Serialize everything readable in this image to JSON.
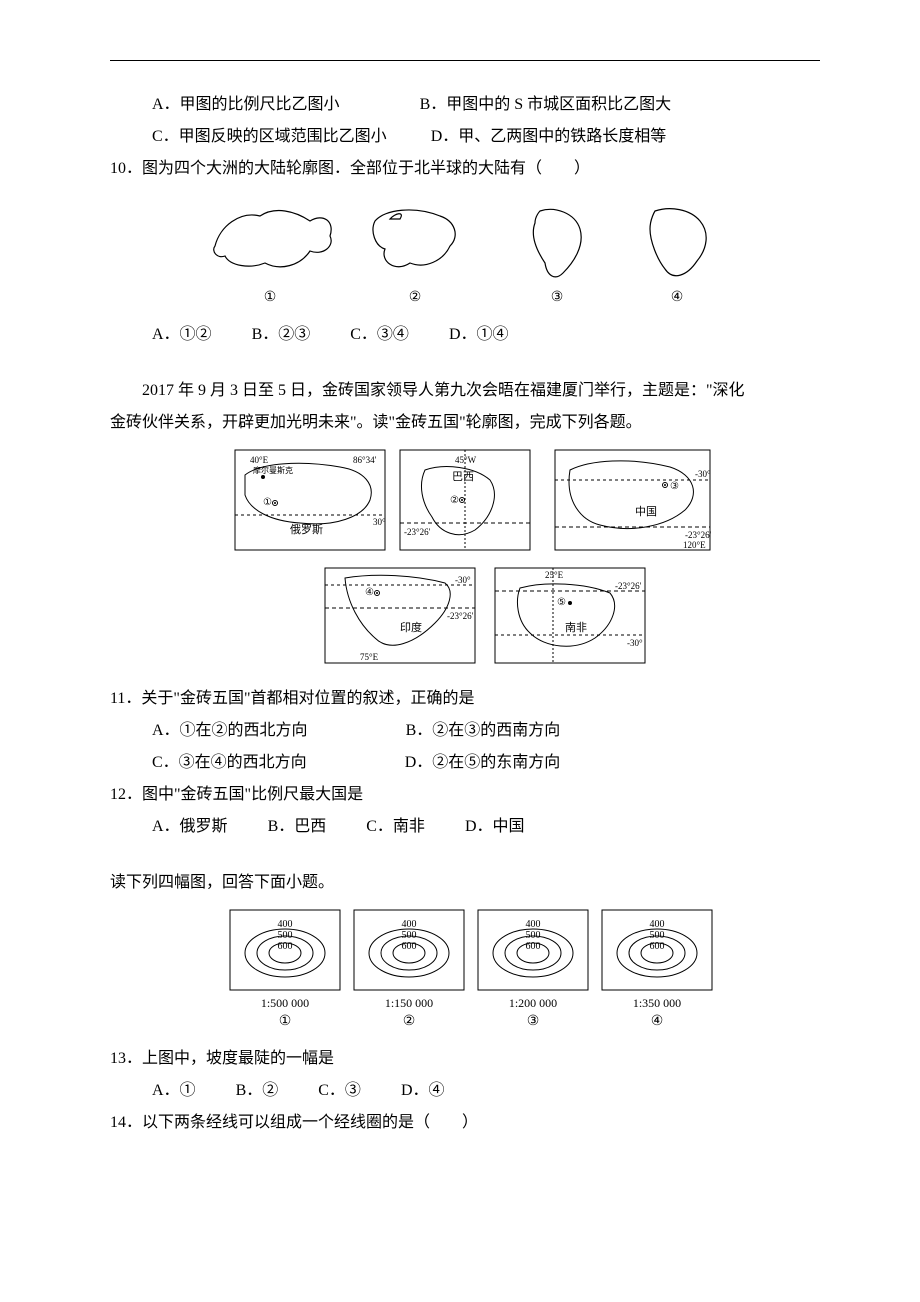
{
  "colors": {
    "text": "#000000",
    "line": "#000000",
    "bg": "#ffffff"
  },
  "q9": {
    "optA": "A．甲图的比例尺比乙图小",
    "optB": "B．甲图中的 S 市城区面积比乙图大",
    "optC": "C．甲图反映的区域范围比乙图小",
    "optD": "D．甲、乙两图中的铁路长度相等"
  },
  "q10": {
    "stem": "10．图为四个大洲的大陆轮廓图．全部位于北半球的大陆有（　　）",
    "labels": [
      "①",
      "②",
      "③",
      "④"
    ],
    "optA": "A．①②",
    "optB": "B．②③",
    "optC": "C．③④",
    "optD": "D．①④"
  },
  "brics_intro1": "　　2017 年 9 月 3 日至 5 日，金砖国家领导人第九次会晤在福建厦门举行，主题是：\"深化",
  "brics_intro2": "金砖伙伴关系，开辟更加光明未来\"。读\"金砖五国\"轮廓图，完成下列各题。",
  "brics_map": {
    "russia": {
      "name": "俄罗斯",
      "lon1": "40°E",
      "lon2": "86°34'",
      "mark": "①",
      "city": "摩尔曼斯克",
      "lat": "30°"
    },
    "brazil": {
      "name": "巴西",
      "lon": "45°W",
      "mark": "②",
      "lat": "-23°26'"
    },
    "china": {
      "name": "中国",
      "mark": "③",
      "lat1": "-30°",
      "lat2": "-23°26'",
      "lon": "120°E"
    },
    "india": {
      "name": "印度",
      "mark": "④",
      "lat1": "-30°",
      "lat2": "-23°26'",
      "lon": "75°E"
    },
    "safrica": {
      "name": "南非",
      "mark": "⑤",
      "lat1": "-23°26'",
      "lat2": "-30°",
      "lon": "25°E"
    }
  },
  "q11": {
    "stem": "11．关于\"金砖五国\"首都相对位置的叙述，正确的是",
    "optA": "A．①在②的西北方向",
    "optB": "B．②在③的西南方向",
    "optC": "C．③在④的西北方向",
    "optD": "D．②在⑤的东南方向"
  },
  "q12": {
    "stem": "12．图中\"金砖五国\"比例尺最大国是",
    "optA": "A．俄罗斯",
    "optB": "B．巴西",
    "optC": "C．南非",
    "optD": "D．中国"
  },
  "contour_intro": "读下列四幅图，回答下面小题。",
  "contours": {
    "values": [
      "400",
      "500",
      "600"
    ],
    "items": [
      {
        "scale": "1:500 000",
        "label": "①"
      },
      {
        "scale": "1:150 000",
        "label": "②"
      },
      {
        "scale": "1:200 000",
        "label": "③"
      },
      {
        "scale": "1:350 000",
        "label": "④"
      }
    ]
  },
  "q13": {
    "stem": "13．上图中，坡度最陡的一幅是",
    "optA": "A．①",
    "optB": "B．②",
    "optC": "C．③",
    "optD": "D．④"
  },
  "q14": {
    "stem": "14．以下两条经线可以组成一个经线圈的是（　　）"
  }
}
